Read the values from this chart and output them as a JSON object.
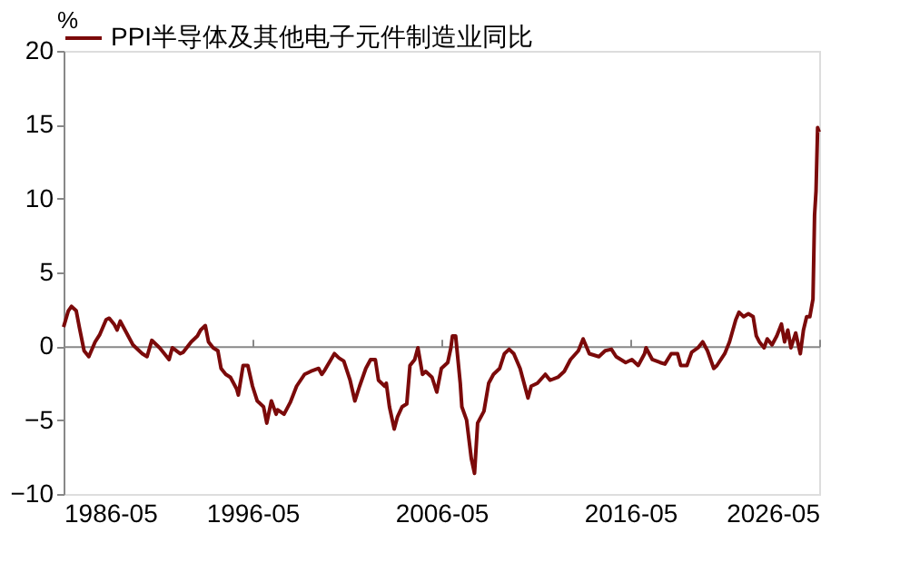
{
  "chart_data": {
    "type": "line",
    "ylabel": "%",
    "legend": "top",
    "x": [
      "1986-05",
      "1986-08",
      "1986-10",
      "1987-01",
      "1987-03",
      "1987-06",
      "1987-09",
      "1988-01",
      "1988-04",
      "1988-08",
      "1988-10",
      "1989-01",
      "1989-03",
      "1989-05",
      "1989-08",
      "1990-01",
      "1990-05",
      "1990-07",
      "1990-10",
      "1991-01",
      "1991-06",
      "1991-09",
      "1991-12",
      "1992-02",
      "1992-07",
      "1992-09",
      "1993-02",
      "1993-06",
      "1993-08",
      "1993-11",
      "1994-01",
      "1994-04",
      "1994-07",
      "1994-09",
      "1994-12",
      "1995-03",
      "1995-07",
      "1995-08",
      "1995-11",
      "1996-02",
      "1996-05",
      "1996-08",
      "1996-12",
      "1997-02",
      "1997-05",
      "1997-08",
      "1997-09",
      "1998-01",
      "1998-05",
      "1998-09",
      "1999-02",
      "1999-06",
      "1999-11",
      "2000-01",
      "2000-03",
      "2000-09",
      "2000-12",
      "2001-03",
      "2001-07",
      "2001-10",
      "2002-01",
      "2002-05",
      "2002-08",
      "2002-11",
      "2003-01",
      "2003-05",
      "2003-06",
      "2003-08",
      "2003-11",
      "2004-01",
      "2004-04",
      "2004-07",
      "2004-09",
      "2004-12",
      "2005-02",
      "2005-05",
      "2005-07",
      "2005-11",
      "2006-02",
      "2006-05",
      "2006-09",
      "2006-11",
      "2006-12",
      "2007-02",
      "2007-05",
      "2007-06",
      "2007-09",
      "2007-12",
      "2008-02",
      "2008-04",
      "2008-08",
      "2008-11",
      "2009-02",
      "2009-06",
      "2009-09",
      "2009-12",
      "2010-03",
      "2010-07",
      "2010-12",
      "2011-02",
      "2011-06",
      "2011-11",
      "2012-02",
      "2012-07",
      "2012-11",
      "2013-03",
      "2013-08",
      "2013-11",
      "2014-03",
      "2014-09",
      "2015-01",
      "2015-05",
      "2015-08",
      "2016-02",
      "2016-06",
      "2016-10",
      "2017-02",
      "2017-03",
      "2017-07",
      "2017-12",
      "2018-03",
      "2018-07",
      "2018-11",
      "2019-01",
      "2019-05",
      "2019-08",
      "2019-12",
      "2020-03",
      "2020-06",
      "2020-10",
      "2020-12",
      "2021-05",
      "2021-08",
      "2021-12",
      "2022-02",
      "2022-05",
      "2022-08",
      "2022-11",
      "2023-01",
      "2023-03",
      "2023-06",
      "2023-08",
      "2023-11",
      "2024-02",
      "2024-05",
      "2024-07",
      "2024-09",
      "2024-11",
      "2025-02",
      "2025-05",
      "2025-07",
      "2025-09",
      "2025-11",
      "2026-01",
      "2026-02",
      "2026-03",
      "2026-04",
      "2026-05"
    ],
    "series": [
      {
        "name": "PPI半导体及其他电子元件制造业同比",
        "color": "#7b0a0a",
        "values": [
          1.3,
          2.4,
          2.7,
          2.4,
          1.3,
          -0.3,
          -0.7,
          0.3,
          0.8,
          1.8,
          1.9,
          1.5,
          1.1,
          1.7,
          1.1,
          0.1,
          -0.3,
          -0.5,
          -0.7,
          0.4,
          -0.1,
          -0.5,
          -0.9,
          -0.1,
          -0.5,
          -0.4,
          0.3,
          0.7,
          1.1,
          1.4,
          0.3,
          -0.1,
          -0.3,
          -1.5,
          -1.9,
          -2.1,
          -2.9,
          -3.3,
          -1.3,
          -1.3,
          -2.7,
          -3.7,
          -4.1,
          -5.2,
          -3.7,
          -4.6,
          -4.3,
          -4.6,
          -3.8,
          -2.7,
          -1.9,
          -1.7,
          -1.5,
          -1.9,
          -1.6,
          -0.5,
          -0.8,
          -1.0,
          -2.3,
          -3.7,
          -2.7,
          -1.5,
          -0.9,
          -0.9,
          -2.3,
          -2.7,
          -2.5,
          -4.1,
          -5.6,
          -4.8,
          -4.1,
          -3.9,
          -1.3,
          -0.9,
          -0.1,
          -1.9,
          -1.7,
          -2.1,
          -3.1,
          -1.5,
          -1.1,
          -0.1,
          0.7,
          0.7,
          -2.5,
          -4.1,
          -5.0,
          -7.6,
          -8.6,
          -5.2,
          -4.4,
          -2.5,
          -1.9,
          -1.5,
          -0.5,
          -0.2,
          -0.5,
          -1.5,
          -3.5,
          -2.7,
          -2.5,
          -1.9,
          -2.3,
          -2.1,
          -1.7,
          -0.9,
          -0.3,
          0.5,
          -0.5,
          -0.7,
          -0.3,
          -0.2,
          -0.7,
          -1.1,
          -0.9,
          -1.3,
          -0.5,
          -0.1,
          -0.9,
          -1.1,
          -1.2,
          -0.5,
          -0.5,
          -1.3,
          -1.3,
          -0.4,
          -0.1,
          0.3,
          -0.3,
          -1.5,
          -1.3,
          -0.5,
          0.3,
          1.8,
          2.3,
          2.0,
          2.2,
          2.0,
          0.7,
          0.3,
          -0.1,
          0.5,
          0.1,
          0.7,
          1.5,
          0.3,
          1.1,
          -0.1,
          0.9,
          -0.5,
          1.1,
          2.0,
          2.0,
          3.2,
          8.9,
          10.5,
          14.8,
          14.5
        ]
      }
    ],
    "xlim": [
      "1986-05",
      "2026-05"
    ],
    "xticks": [
      "1986-05",
      "1996-05",
      "2006-05",
      "2016-05",
      "2026-05"
    ],
    "ylim": [
      -10,
      20
    ],
    "yticks": [
      -10,
      -5,
      0,
      5,
      10,
      15,
      20
    ]
  }
}
